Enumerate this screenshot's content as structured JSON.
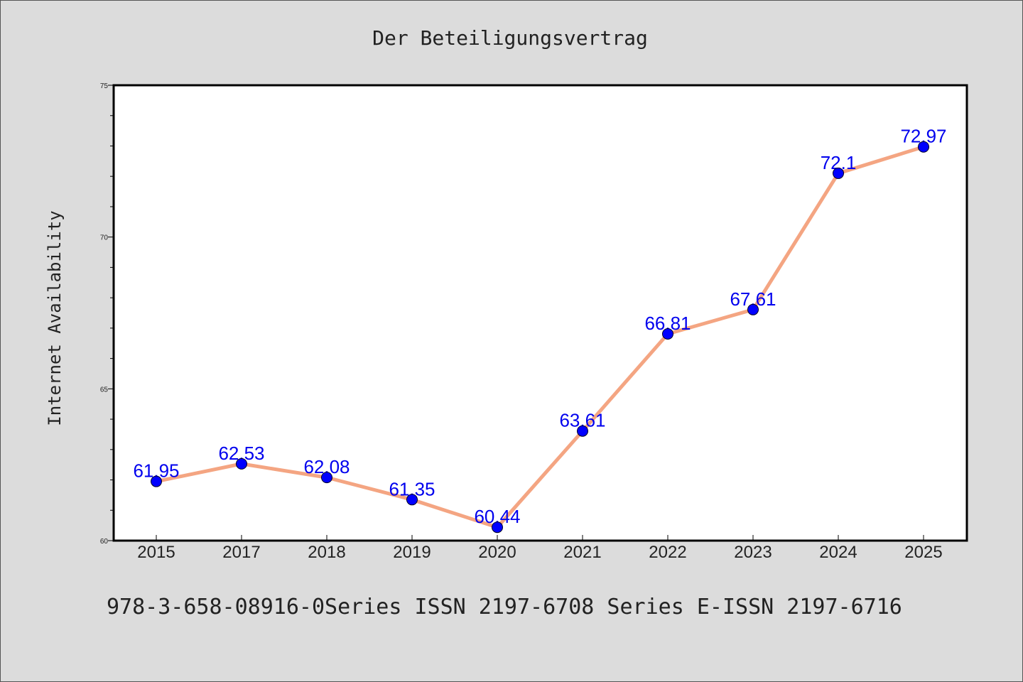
{
  "colors": {
    "background": "#dcdcdc",
    "plot_area": "#ffffff",
    "line": "#f4a582",
    "marker": "#0000ff",
    "data_label": "#0000ee"
  },
  "caption": "978-3-658-08916-0Series ISSN 2197-6708 Series E-ISSN 2197-6716",
  "chart_data": {
    "type": "line",
    "title": "Der Beteiligungsvertrag",
    "xlabel": "",
    "ylabel": "Internet Availability",
    "categories": [
      "2015",
      "2017",
      "2018",
      "2019",
      "2020",
      "2021",
      "2022",
      "2023",
      "2024",
      "2025"
    ],
    "series": [
      {
        "values": [
          61.95,
          62.53,
          62.08,
          61.35,
          60.44,
          63.61,
          66.81,
          67.61,
          72.1,
          72.97
        ],
        "labels": [
          "61.95",
          "62.53",
          "62.08",
          "61.35",
          "60.44",
          "63.61",
          "66.81",
          "67.61",
          "72.1",
          "72.97"
        ]
      }
    ],
    "ylim": [
      60,
      75
    ],
    "yticks": [
      "60",
      "65",
      "70",
      "75"
    ],
    "grid": false,
    "legend": "none"
  }
}
